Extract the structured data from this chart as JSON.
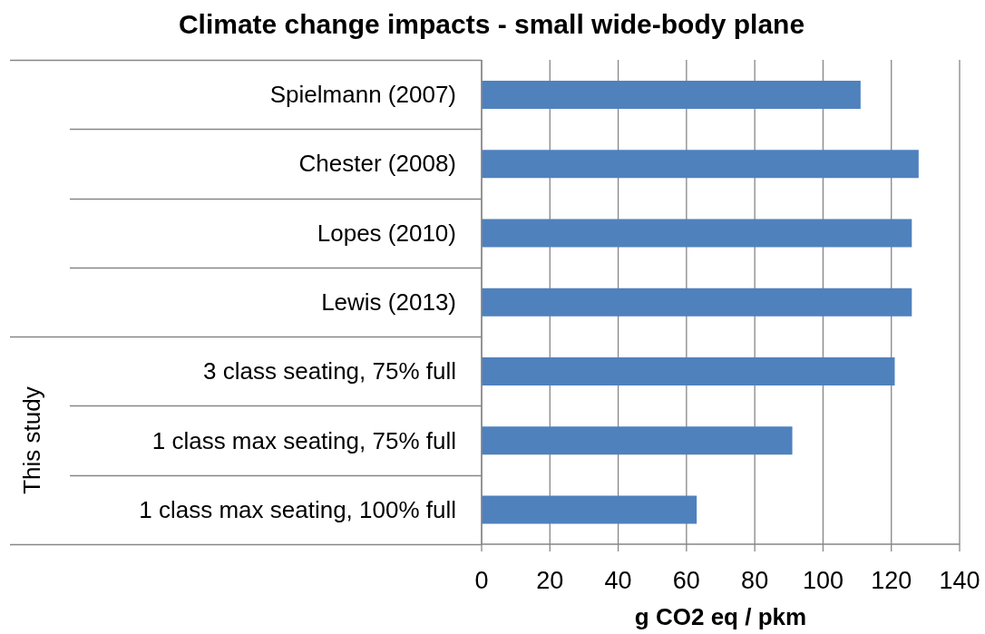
{
  "chart_data": {
    "type": "bar",
    "orientation": "horizontal",
    "title": "Climate change impacts - small wide-body plane",
    "xlabel": "g CO2 eq / pkm",
    "categories": [
      "Spielmann (2007)",
      "Chester (2008)",
      "Lopes (2010)",
      "Lewis (2013)",
      "3 class seating, 75% full",
      "1 class max seating, 75% full",
      "1 class max seating, 100% full"
    ],
    "values": [
      111,
      128,
      126,
      126,
      121,
      91,
      63
    ],
    "color": "#4f81bd",
    "xlim": [
      0,
      140
    ],
    "xticks": [
      0,
      20,
      40,
      60,
      80,
      100,
      120,
      140
    ],
    "grid": "x",
    "annotations": [
      "This study"
    ]
  }
}
